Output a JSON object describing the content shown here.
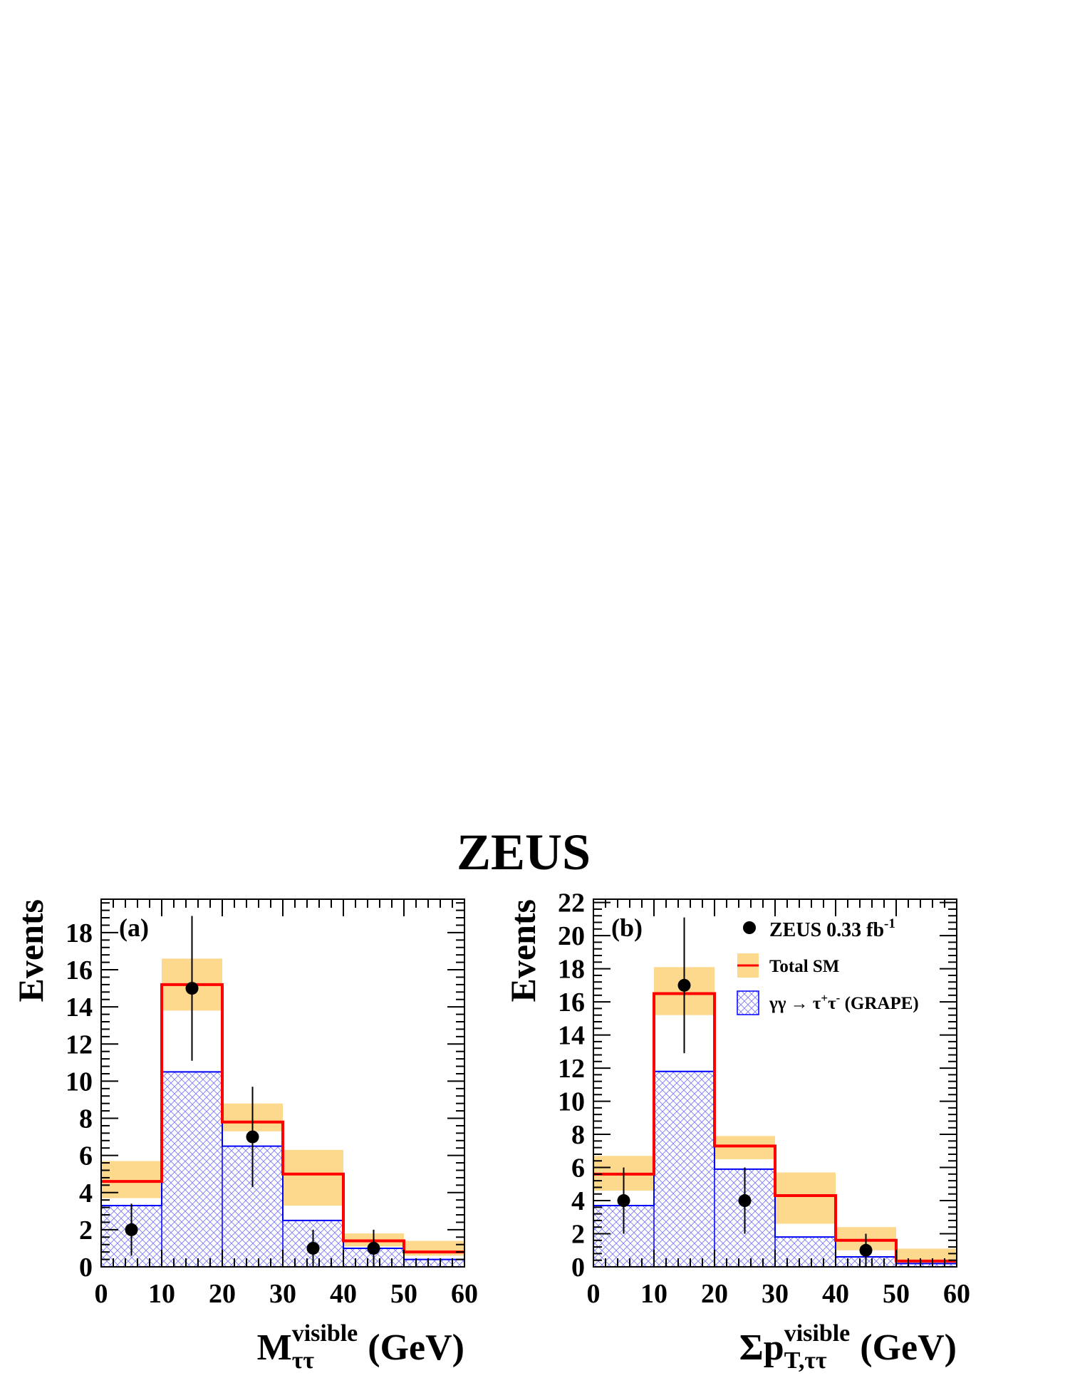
{
  "figure_title": "ZEUS",
  "chart_data": [
    {
      "type": "bar",
      "panel_label": "(a)",
      "ylabel": "Events",
      "xlabel_main": "M",
      "xlabel_sup": "visible",
      "xlabel_sub": "ττ",
      "xlabel_unit": "(GeV)",
      "xlim": [
        0,
        60
      ],
      "ylim": [
        0,
        19.8
      ],
      "xticks": [
        0,
        10,
        20,
        30,
        40,
        50,
        60
      ],
      "yticks": [
        0,
        2,
        4,
        6,
        8,
        10,
        12,
        14,
        16,
        18
      ],
      "bin_edges": [
        0,
        10,
        20,
        30,
        40,
        50,
        60
      ],
      "series": [
        {
          "name": "ZEUS 0.33 fb-1",
          "kind": "data",
          "x": [
            5,
            15,
            25,
            35,
            45
          ],
          "y": [
            2,
            15,
            7,
            1,
            1
          ],
          "err_low": [
            1.4,
            3.9,
            2.7,
            1.0,
            1.0
          ],
          "err_high": [
            1.4,
            3.9,
            2.7,
            1.0,
            1.0
          ]
        },
        {
          "name": "Total SM",
          "kind": "step",
          "values": [
            4.6,
            15.2,
            7.8,
            5.0,
            1.4,
            0.8
          ]
        },
        {
          "name": "Total SM uncertainty",
          "kind": "band",
          "low": [
            3.7,
            13.8,
            7.3,
            3.3,
            1.1,
            0.6
          ],
          "high": [
            5.7,
            16.6,
            8.8,
            6.3,
            1.8,
            1.4
          ]
        },
        {
          "name": "γγ → τ+τ- (GRAPE)",
          "kind": "hatched",
          "values": [
            3.3,
            10.5,
            6.5,
            2.5,
            1.0,
            0.4
          ]
        }
      ]
    },
    {
      "type": "bar",
      "panel_label": "(b)",
      "ylabel": "Events",
      "xlabel_main": "Σp",
      "xlabel_sup": "visible",
      "xlabel_sub": "T,ττ",
      "xlabel_unit": "(GeV)",
      "xlim": [
        0,
        60
      ],
      "ylim": [
        0,
        22.2
      ],
      "xticks": [
        0,
        10,
        20,
        30,
        40,
        50,
        60
      ],
      "yticks": [
        0,
        2,
        4,
        6,
        8,
        10,
        12,
        14,
        16,
        18,
        20,
        22
      ],
      "bin_edges": [
        0,
        10,
        20,
        30,
        40,
        50,
        60
      ],
      "series": [
        {
          "name": "ZEUS 0.33 fb-1",
          "kind": "data",
          "x": [
            5,
            15,
            25,
            45
          ],
          "y": [
            4,
            17,
            4,
            1
          ],
          "err_low": [
            2.0,
            4.1,
            2.0,
            1.0
          ],
          "err_high": [
            2.0,
            4.1,
            2.0,
            1.0
          ]
        },
        {
          "name": "Total SM",
          "kind": "step",
          "values": [
            5.6,
            16.5,
            7.3,
            4.3,
            1.6,
            0.35
          ]
        },
        {
          "name": "Total SM uncertainty",
          "kind": "band",
          "low": [
            4.6,
            15.2,
            6.5,
            2.6,
            1.0,
            0.15
          ],
          "high": [
            6.7,
            18.1,
            7.9,
            5.7,
            2.4,
            1.1
          ]
        },
        {
          "name": "γγ → τ+τ- (GRAPE)",
          "kind": "hatched",
          "values": [
            3.7,
            11.8,
            5.9,
            1.8,
            0.6,
            0.2
          ]
        }
      ]
    }
  ],
  "legend": {
    "data_main": "ZEUS 0.33 fb",
    "data_sup": "-1",
    "sm_label": "Total SM",
    "grape_prefix": "γγ → τ",
    "grape_sup1": "+",
    "grape_mid": "τ",
    "grape_sup2": "-",
    "grape_suffix": " (GRAPE)"
  },
  "colors": {
    "band": "#fdd98e",
    "sm_line": "#ff0000",
    "grape_line": "#0000ff",
    "hatch": "#7b7bff",
    "data": "#000000"
  }
}
